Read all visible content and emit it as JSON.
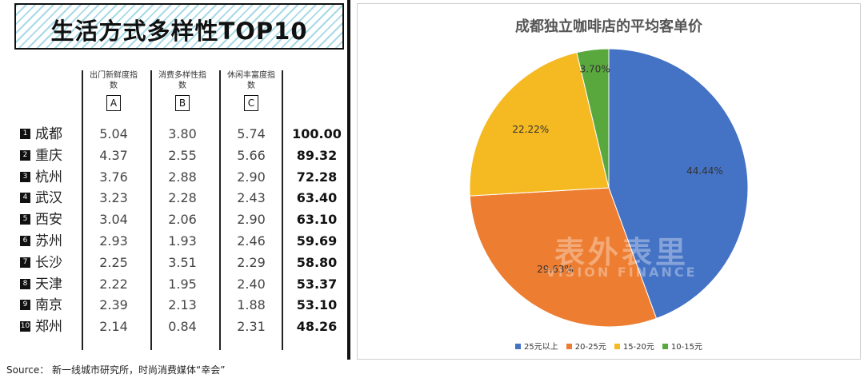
{
  "table": {
    "title": "生活方式多样性TOP10",
    "columns": [
      {
        "name": "出门新鲜度指数",
        "letter": "A"
      },
      {
        "name": "消费多样性指数",
        "letter": "B"
      },
      {
        "name": "休闲丰富度指数",
        "letter": "C"
      }
    ],
    "rows": [
      {
        "rank": "1",
        "city": "成都",
        "a": "5.04",
        "b": "3.80",
        "c": "5.74",
        "score": "100.00"
      },
      {
        "rank": "2",
        "city": "重庆",
        "a": "4.37",
        "b": "2.55",
        "c": "5.66",
        "score": "89.32"
      },
      {
        "rank": "3",
        "city": "杭州",
        "a": "3.76",
        "b": "2.88",
        "c": "2.90",
        "score": "72.28"
      },
      {
        "rank": "4",
        "city": "武汉",
        "a": "3.23",
        "b": "2.28",
        "c": "2.43",
        "score": "63.40"
      },
      {
        "rank": "5",
        "city": "西安",
        "a": "3.04",
        "b": "2.06",
        "c": "2.90",
        "score": "63.10"
      },
      {
        "rank": "6",
        "city": "苏州",
        "a": "2.93",
        "b": "1.93",
        "c": "2.46",
        "score": "59.69"
      },
      {
        "rank": "7",
        "city": "长沙",
        "a": "2.25",
        "b": "3.51",
        "c": "2.29",
        "score": "58.80"
      },
      {
        "rank": "8",
        "city": "天津",
        "a": "2.22",
        "b": "1.95",
        "c": "2.40",
        "score": "53.37"
      },
      {
        "rank": "9",
        "city": "南京",
        "a": "2.39",
        "b": "2.13",
        "c": "1.88",
        "score": "53.10"
      },
      {
        "rank": "10",
        "city": "郑州",
        "a": "2.14",
        "b": "0.84",
        "c": "2.31",
        "score": "48.26"
      }
    ]
  },
  "source": "Source：  新一线城市研究所，时尚消费媒体“幸会”",
  "watermark": {
    "text": "表外表里",
    "sub": "VISION FINANCE"
  },
  "chart_data": {
    "type": "pie",
    "title": "成都独立咖啡店的平均客单价",
    "slices": [
      {
        "label": "25元以上",
        "value": 44.44,
        "display": "44.44%",
        "color": "#4472c4"
      },
      {
        "label": "20-25元",
        "value": 29.63,
        "display": "29.63%",
        "color": "#ed7d31"
      },
      {
        "label": "15-20元",
        "value": 22.22,
        "display": "22.22%",
        "color": "#f5b921"
      },
      {
        "label": "10-15元",
        "value": 3.7,
        "display": "3.70%",
        "color": "#59a83d"
      }
    ],
    "legend_position": "bottom"
  }
}
